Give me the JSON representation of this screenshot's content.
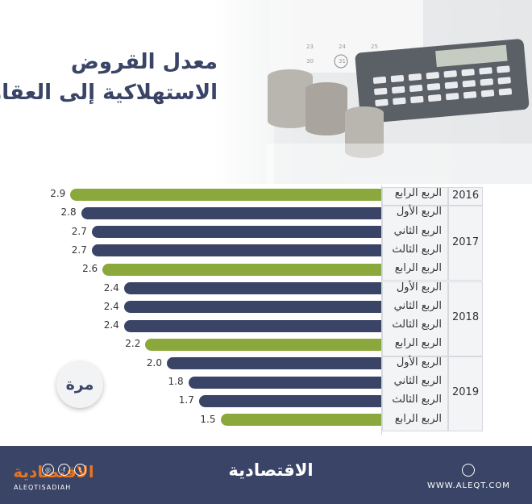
{
  "header": {
    "title_line1": "معدل القروض",
    "title_line2": "الاستهلاكية إلى العقارية"
  },
  "unit_badge": "مرة",
  "colors": {
    "q4": "#8aa83c",
    "other_quarters": "#3a4466",
    "navy": "#3a4466",
    "brand_orange": "#e8741e"
  },
  "chart_data": {
    "type": "bar",
    "orientation": "horizontal",
    "categories": [
      "2016 الربع الرابع",
      "2017 الربع الأول",
      "2017 الربع الثاني",
      "2017 الربع الثالث",
      "2017 الربع الرابع",
      "2018 الربع الأول",
      "2018 الربع الثاني",
      "2018 الربع الثالث",
      "2018 الربع الرابع",
      "2019 الربع الأول",
      "2019 الربع الثاني",
      "2019 الربع الثالث",
      "2019 الربع الرابع"
    ],
    "values": [
      2.9,
      2.8,
      2.7,
      2.7,
      2.6,
      2.4,
      2.4,
      2.4,
      2.2,
      2.0,
      1.8,
      1.7,
      1.5
    ],
    "value_labels": [
      "2.9",
      "2.8",
      "2.7",
      "2.7",
      "2.6",
      "2.4",
      "2.4",
      "2.4",
      "2.2",
      "2.0",
      "1.8",
      "1.7",
      "1.5"
    ],
    "years": [
      {
        "year": "2016",
        "quarters": [
          "الربع الرابع"
        ]
      },
      {
        "year": "2017",
        "quarters": [
          "الربع الأول",
          "الربع الثاني",
          "الربع الثالث",
          "الربع الرابع"
        ]
      },
      {
        "year": "2018",
        "quarters": [
          "الربع الأول",
          "الربع الثاني",
          "الربع الثالث",
          "الربع الرابع"
        ]
      },
      {
        "year": "2019",
        "quarters": [
          "الربع الأول",
          "الربع الثاني",
          "الربع الثالث",
          "الربع الرابع"
        ]
      }
    ],
    "xlim": [
      0,
      3
    ],
    "title": "معدل القروض الاستهلاكية إلى العقارية",
    "xlabel": "",
    "ylabel": "",
    "unit": "مرة",
    "grid": false,
    "legend": false
  },
  "footer": {
    "logo_text": "الاقتصادية",
    "url": "WWW.ALEQT.COM",
    "brand_logo": "الاقتصادية",
    "handle": "ALEQTISADIAH",
    "social_icons": [
      "instagram-icon",
      "facebook-icon",
      "twitter-icon"
    ]
  }
}
